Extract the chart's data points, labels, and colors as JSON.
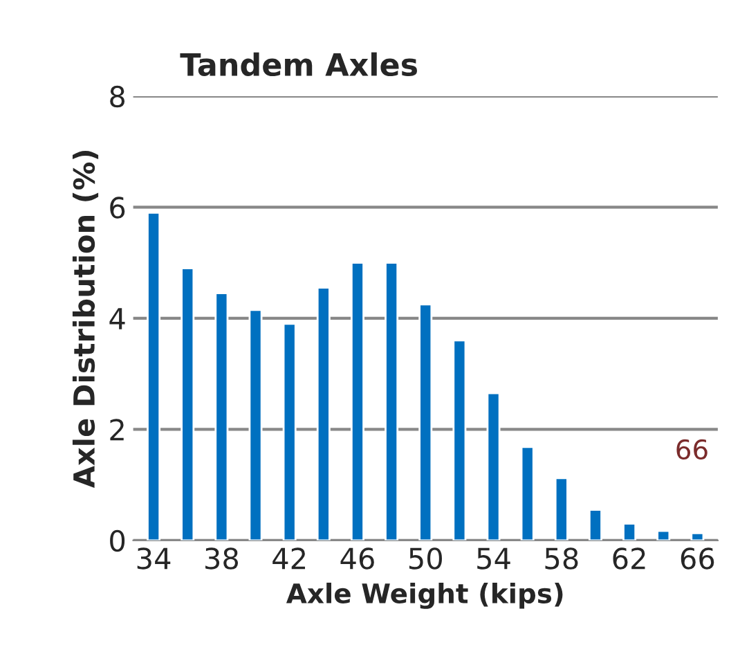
{
  "chart_data": {
    "type": "bar",
    "title": "Tandem Axles",
    "xlabel": "Axle Weight (kips)",
    "ylabel": "Axle Distribution (%)",
    "categories": [
      "34",
      null,
      "38",
      null,
      "42",
      null,
      "46",
      null,
      "50",
      null,
      "54",
      null,
      "58",
      null,
      "62",
      null,
      "66"
    ],
    "values": [
      5.9,
      4.9,
      4.45,
      4.15,
      3.9,
      4.55,
      5.0,
      5.0,
      4.25,
      3.6,
      2.65,
      1.68,
      1.12,
      0.55,
      0.3,
      0.17,
      0.13
    ],
    "color": "#0070c0",
    "ylim": [
      0,
      8
    ],
    "yticks": [
      0,
      2,
      4,
      6,
      8
    ],
    "grid": "y",
    "legend": false,
    "annotations": [
      "66"
    ]
  }
}
